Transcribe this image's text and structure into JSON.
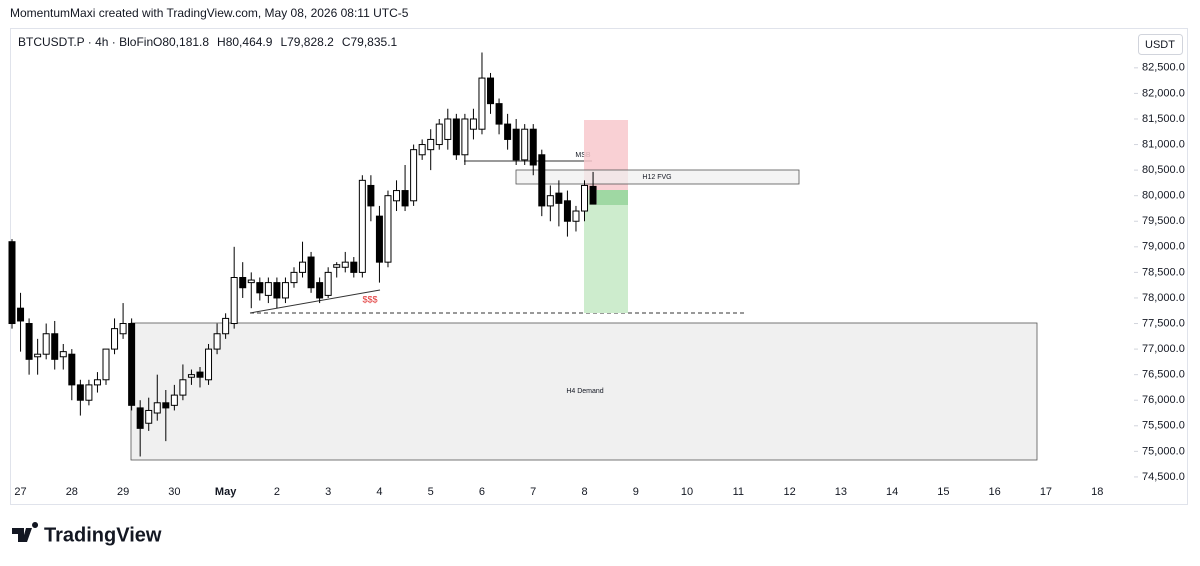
{
  "chart_data": {
    "type": "candlestick",
    "credit": "MomentumMaxi created with TradingView.com, May 08, 2026 08:11 UTC-5",
    "symbol": "BTCUSDT.P · 4h · BloFin",
    "ohlc_header": [
      "O80,181.8",
      "H80,464.9",
      "L79,828.2",
      "C79,835.1"
    ],
    "currency": "USDT",
    "logo": "TradingView",
    "up_color": "#ffffff",
    "down_color": "#000000",
    "open": [
      79100,
      77800,
      77500,
      76850,
      76900,
      77300,
      76850,
      76900,
      76300,
      76000,
      76300,
      76400,
      77000,
      77300,
      77500,
      75850,
      75550,
      75750,
      75950,
      75900,
      76100,
      76450,
      76550,
      76400,
      77000,
      77300,
      77500,
      78400,
      78300,
      78300,
      78050,
      78300,
      78000,
      78300,
      78500,
      78800,
      78300,
      78050,
      78600,
      78600,
      78700,
      78500,
      80200,
      79600,
      78700,
      79900,
      80100,
      79900,
      80800,
      80900,
      81000,
      81100,
      81500,
      80800,
      81300,
      81300,
      82300,
      81800,
      81400,
      81300,
      80700,
      81300,
      80800,
      79800,
      80050,
      79900,
      79500,
      79700,
      80181.8
    ],
    "high": [
      79150,
      78100,
      77600,
      77200,
      77500,
      77550,
      77100,
      77000,
      76400,
      76400,
      76550,
      77000,
      77600,
      77900,
      77600,
      76000,
      76050,
      76500,
      76200,
      76300,
      76700,
      76600,
      76650,
      77100,
      77500,
      77700,
      79000,
      78700,
      78500,
      78400,
      78400,
      78400,
      78400,
      78600,
      79100,
      78900,
      78400,
      78600,
      78700,
      78900,
      78800,
      80400,
      80400,
      79800,
      80100,
      80300,
      80600,
      81000,
      81100,
      81300,
      81500,
      81700,
      81600,
      81600,
      81700,
      82800,
      82400,
      81900,
      81600,
      81500,
      81400,
      81400,
      80900,
      80200,
      80300,
      80100,
      79800,
      80300,
      80464.9
    ],
    "low": [
      77400,
      76950,
      76500,
      76500,
      76800,
      76600,
      76600,
      76000,
      75700,
      75900,
      76150,
      76300,
      76900,
      77200,
      75800,
      74900,
      75400,
      75600,
      75200,
      75800,
      76000,
      76300,
      76250,
      76300,
      76900,
      77200,
      77400,
      78000,
      77800,
      77950,
      77900,
      77800,
      77900,
      78200,
      78400,
      78100,
      77900,
      78000,
      78400,
      78500,
      78400,
      78400,
      79500,
      78300,
      78600,
      79700,
      79700,
      79800,
      80700,
      80500,
      80900,
      80900,
      80700,
      80600,
      81100,
      81200,
      81600,
      81200,
      80900,
      80600,
      80600,
      80400,
      79600,
      79500,
      79400,
      79200,
      79300,
      79500,
      79828.2
    ],
    "close": [
      77500,
      77550,
      76800,
      76900,
      77300,
      76800,
      76950,
      76300,
      76000,
      76300,
      76400,
      77000,
      77400,
      77500,
      75900,
      75450,
      75800,
      75950,
      75850,
      76100,
      76400,
      76500,
      76450,
      77000,
      77300,
      77600,
      78400,
      78200,
      78350,
      78100,
      78300,
      78000,
      78300,
      78500,
      78700,
      78200,
      78000,
      78500,
      78650,
      78700,
      78500,
      80300,
      79800,
      78700,
      80000,
      80100,
      79800,
      80900,
      81000,
      81100,
      81400,
      81500,
      80800,
      81500,
      81500,
      82300,
      81800,
      81400,
      81100,
      80700,
      81300,
      80600,
      79800,
      80000,
      79850,
      79500,
      79700,
      80200,
      79835.1
    ],
    "x_labels": [
      "27",
      "28",
      "29",
      "30",
      "May",
      "2",
      "3",
      "4",
      "5",
      "6",
      "7",
      "8",
      "9",
      "10",
      "11",
      "12",
      "13",
      "14",
      "15",
      "16",
      "17",
      "18"
    ],
    "ylim": [
      74440,
      83240
    ],
    "yticks": [
      {
        "value": 74500,
        "label": "74,500.0"
      },
      {
        "value": 75000,
        "label": "75,000.0"
      },
      {
        "value": 75500,
        "label": "75,500.0"
      },
      {
        "value": 76000,
        "label": "76,000.0"
      },
      {
        "value": 76500,
        "label": "76,500.0"
      },
      {
        "value": 77000,
        "label": "77,000.0"
      },
      {
        "value": 77500,
        "label": "77,500.0"
      },
      {
        "value": 78000,
        "label": "78,000.0"
      },
      {
        "value": 78500,
        "label": "78,500.0"
      },
      {
        "value": 79000,
        "label": "79,000.0"
      },
      {
        "value": 79500,
        "label": "79,500.0"
      },
      {
        "value": 80000,
        "label": "80,000.0"
      },
      {
        "value": 80500,
        "label": "80,500.0"
      },
      {
        "value": 81000,
        "label": "81,000.0"
      },
      {
        "value": 81500,
        "label": "81,500.0"
      },
      {
        "value": 82000,
        "label": "82,000.0"
      },
      {
        "value": 82500,
        "label": "82,500.0"
      }
    ],
    "annotations": {
      "demand": "H4 Demand",
      "fvg": "H12 FVG",
      "msb": "MSB",
      "liquidity": "$$$"
    }
  }
}
